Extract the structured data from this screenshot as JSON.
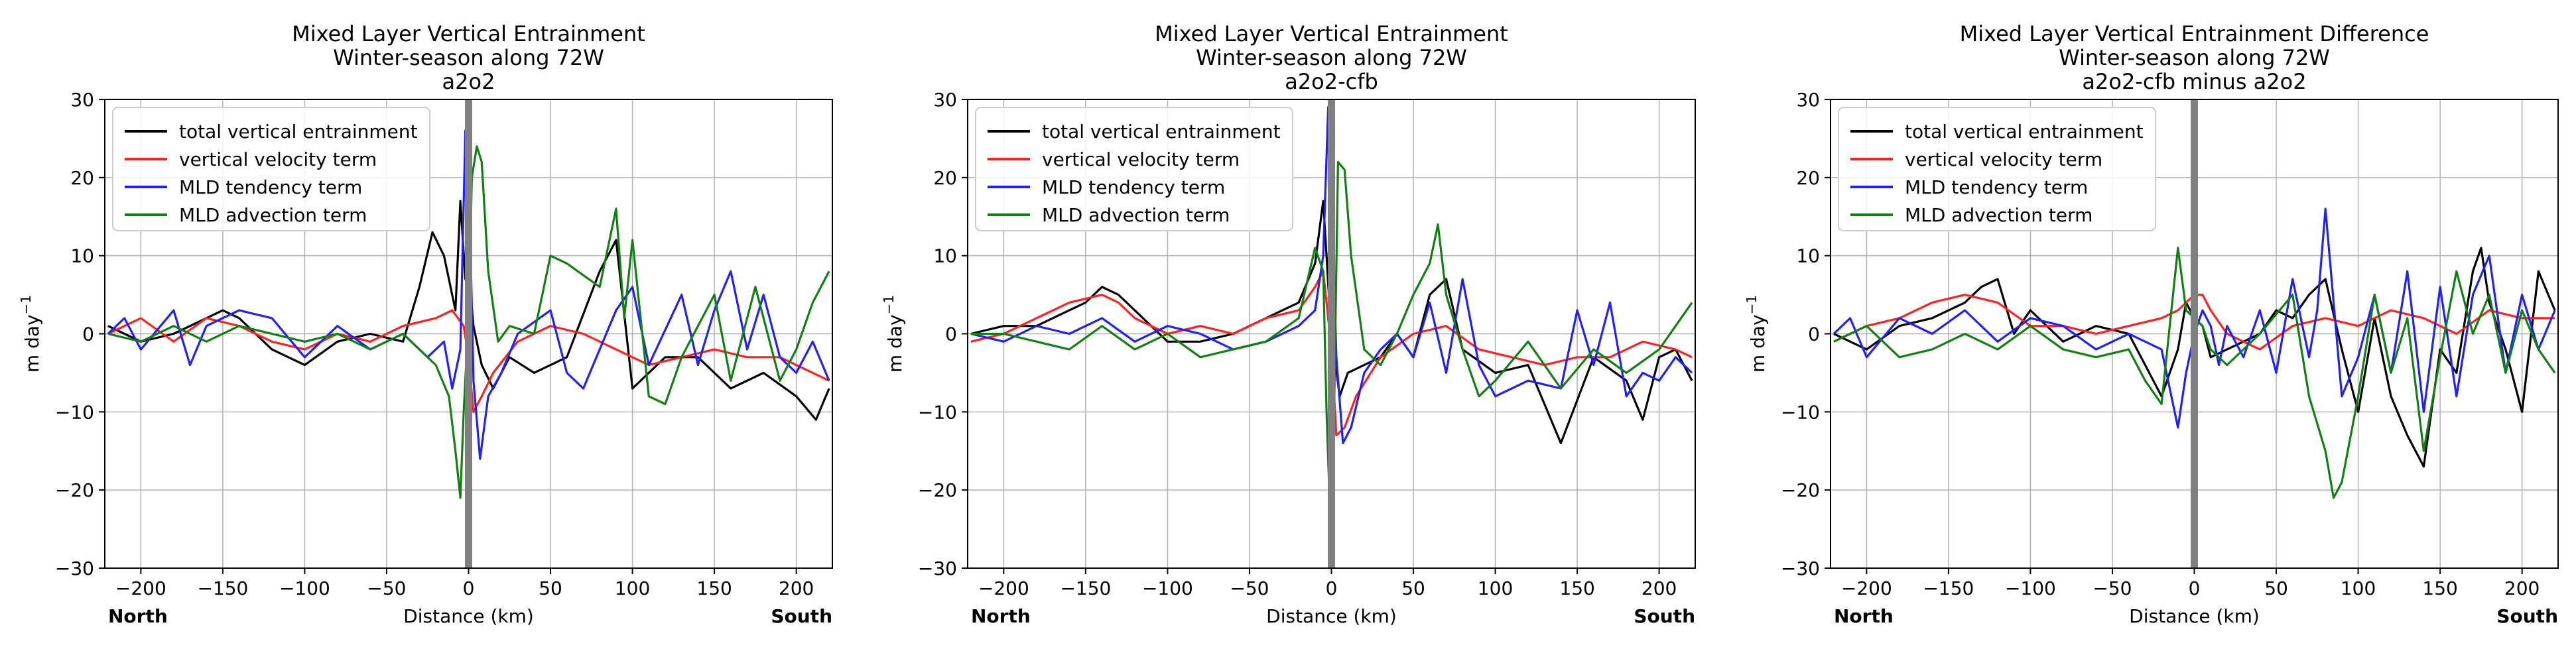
{
  "figure": {
    "ylabel_main": "m day",
    "ylabel_sup": "−1",
    "xlabel": "Distance (km)",
    "north_label": "North",
    "south_label": "South"
  },
  "chart_data": [
    {
      "type": "line",
      "title": [
        "Mixed Layer Vertical Entrainment",
        "Winter-season along 72W",
        "a2o2"
      ],
      "xlabel": "Distance (km)",
      "ylabel": "m day^-1",
      "xlim": [
        -222,
        222
      ],
      "ylim": [
        -30,
        30
      ],
      "xticks": [
        -200,
        -150,
        -100,
        -50,
        0,
        50,
        100,
        150,
        200
      ],
      "yticks": [
        -30,
        -20,
        -10,
        0,
        10,
        20,
        30
      ],
      "xtick_labels": [
        "−200",
        "−150",
        "−100",
        "−50",
        "0",
        "50",
        "100",
        "150",
        "200"
      ],
      "ytick_labels": [
        "−30",
        "−20",
        "−10",
        "0",
        "10",
        "20",
        "30"
      ],
      "grid": true,
      "legend": "top-left",
      "vline_x": 0,
      "series": [
        {
          "name": "total vertical entrainment",
          "color": "#000000",
          "x": [
            -220,
            -200,
            -180,
            -160,
            -150,
            -140,
            -120,
            -100,
            -80,
            -60,
            -40,
            -30,
            -22,
            -15,
            -8,
            -5,
            -2,
            0,
            3,
            8,
            15,
            25,
            40,
            60,
            80,
            90,
            100,
            120,
            140,
            160,
            180,
            200,
            212,
            220
          ],
          "y": [
            1,
            -1,
            0,
            2,
            3,
            2,
            -2,
            -4,
            -1,
            0,
            -1,
            6,
            13,
            10,
            3,
            17,
            7,
            8,
            1,
            -4,
            -7,
            -3,
            -5,
            -3,
            8,
            12,
            -7,
            -3,
            -3,
            -7,
            -5,
            -8,
            -11,
            -7
          ]
        },
        {
          "name": "vertical velocity term",
          "color": "#ff2020",
          "x": [
            -220,
            -200,
            -180,
            -160,
            -140,
            -120,
            -100,
            -80,
            -60,
            -40,
            -20,
            -10,
            -3,
            0,
            3,
            8,
            15,
            30,
            50,
            70,
            90,
            110,
            130,
            150,
            170,
            190,
            210,
            220
          ],
          "y": [
            0,
            2,
            -1,
            2,
            1,
            -1,
            -2,
            0,
            -1,
            1,
            2,
            3,
            1,
            -3,
            -10,
            -8,
            -5,
            -1,
            1,
            0,
            -2,
            -4,
            -3,
            -2,
            -3,
            -3,
            -5,
            -6
          ]
        },
        {
          "name": "MLD tendency term",
          "color": "#2020ff",
          "x": [
            -220,
            -210,
            -200,
            -180,
            -170,
            -160,
            -140,
            -120,
            -100,
            -80,
            -60,
            -40,
            -25,
            -15,
            -10,
            -5,
            -2,
            0,
            3,
            7,
            12,
            20,
            30,
            50,
            60,
            70,
            90,
            100,
            110,
            130,
            140,
            150,
            160,
            170,
            180,
            190,
            200,
            210,
            220
          ],
          "y": [
            0,
            2,
            -2,
            3,
            -4,
            1,
            3,
            2,
            -3,
            1,
            -2,
            0,
            -3,
            -1,
            -7,
            -2,
            26,
            22,
            -6,
            -16,
            -8,
            -5,
            0,
            3,
            -5,
            -7,
            3,
            6,
            -4,
            5,
            -4,
            3,
            8,
            -2,
            5,
            -3,
            -5,
            -1,
            -6
          ]
        },
        {
          "name": "MLD advection term",
          "color": "#108010",
          "x": [
            -220,
            -200,
            -180,
            -160,
            -140,
            -120,
            -100,
            -80,
            -60,
            -40,
            -30,
            -20,
            -12,
            -8,
            -5,
            -3,
            -1,
            0,
            2,
            5,
            8,
            12,
            18,
            25,
            40,
            50,
            60,
            80,
            90,
            95,
            100,
            110,
            120,
            130,
            150,
            160,
            175,
            190,
            200,
            210,
            220
          ],
          "y": [
            0,
            -1,
            1,
            -1,
            1,
            0,
            -1,
            0,
            -2,
            0,
            -2,
            -4,
            -8,
            -15,
            -21,
            -10,
            -2,
            1,
            20,
            24,
            22,
            8,
            -1,
            1,
            0,
            10,
            9,
            6,
            16,
            2,
            12,
            -8,
            -9,
            -3,
            5,
            -6,
            6,
            -6,
            -2,
            4,
            8
          ]
        }
      ]
    },
    {
      "type": "line",
      "title": [
        "Mixed Layer Vertical Entrainment",
        "Winter-season along 72W",
        "a2o2-cfb"
      ],
      "xlabel": "Distance (km)",
      "ylabel": "m day^-1",
      "xlim": [
        -222,
        222
      ],
      "ylim": [
        -30,
        30
      ],
      "xticks": [
        -200,
        -150,
        -100,
        -50,
        0,
        50,
        100,
        150,
        200
      ],
      "yticks": [
        -30,
        -20,
        -10,
        0,
        10,
        20,
        30
      ],
      "xtick_labels": [
        "−200",
        "−150",
        "−100",
        "−50",
        "0",
        "50",
        "100",
        "150",
        "200"
      ],
      "ytick_labels": [
        "−30",
        "−20",
        "−10",
        "0",
        "10",
        "20",
        "30"
      ],
      "grid": true,
      "legend": "top-left",
      "vline_x": 0,
      "series": [
        {
          "name": "total vertical entrainment",
          "color": "#000000",
          "x": [
            -220,
            -200,
            -180,
            -160,
            -150,
            -140,
            -130,
            -120,
            -100,
            -80,
            -60,
            -40,
            -20,
            -10,
            -5,
            -3,
            -1,
            2,
            5,
            10,
            20,
            30,
            40,
            50,
            60,
            70,
            80,
            100,
            120,
            130,
            140,
            160,
            180,
            190,
            200,
            210,
            220
          ],
          "y": [
            0,
            1,
            1,
            3,
            4,
            6,
            5,
            3,
            -1,
            -1,
            0,
            2,
            4,
            9,
            17,
            10,
            3,
            -3,
            -8,
            -5,
            -4,
            -3,
            0,
            -3,
            5,
            7,
            -2,
            -5,
            -4,
            -9,
            -14,
            -3,
            -6,
            -11,
            -3,
            -2,
            -6
          ]
        },
        {
          "name": "vertical velocity term",
          "color": "#ff2020",
          "x": [
            -220,
            -200,
            -180,
            -160,
            -140,
            -130,
            -120,
            -100,
            -80,
            -60,
            -40,
            -20,
            -10,
            -5,
            -3,
            0,
            3,
            8,
            15,
            30,
            50,
            70,
            90,
            110,
            130,
            150,
            170,
            190,
            210,
            220
          ],
          "y": [
            -1,
            0,
            2,
            4,
            5,
            4,
            2,
            0,
            1,
            0,
            2,
            3,
            6,
            8,
            4,
            -2,
            -13,
            -12,
            -8,
            -3,
            0,
            1,
            -2,
            -3,
            -4,
            -3,
            -3,
            -1,
            -2,
            -3
          ]
        },
        {
          "name": "MLD tendency term",
          "color": "#2020ff",
          "x": [
            -220,
            -200,
            -180,
            -160,
            -140,
            -120,
            -100,
            -80,
            -60,
            -40,
            -20,
            -10,
            -5,
            -2,
            0,
            3,
            7,
            12,
            20,
            30,
            40,
            50,
            60,
            70,
            80,
            90,
            100,
            120,
            140,
            150,
            160,
            170,
            180,
            190,
            200,
            210,
            220
          ],
          "y": [
            0,
            -1,
            1,
            0,
            2,
            -1,
            1,
            0,
            -2,
            -1,
            1,
            3,
            10,
            29,
            20,
            -3,
            -14,
            -12,
            -5,
            -2,
            0,
            -3,
            4,
            -5,
            7,
            -4,
            -8,
            -6,
            -7,
            3,
            -4,
            4,
            -8,
            -5,
            -6,
            -3,
            -5
          ]
        },
        {
          "name": "MLD advection term",
          "color": "#108010",
          "x": [
            -220,
            -200,
            -180,
            -160,
            -140,
            -120,
            -100,
            -80,
            -60,
            -40,
            -20,
            -10,
            -5,
            -3,
            -1,
            1,
            4,
            8,
            12,
            20,
            30,
            40,
            50,
            60,
            65,
            70,
            80,
            90,
            100,
            120,
            140,
            160,
            180,
            200,
            210,
            220
          ],
          "y": [
            0,
            0,
            -1,
            -2,
            1,
            -2,
            0,
            -3,
            -2,
            -1,
            2,
            11,
            8,
            -10,
            -22,
            -18,
            22,
            21,
            10,
            -2,
            -4,
            0,
            5,
            9,
            14,
            5,
            -2,
            -8,
            -6,
            -1,
            -7,
            -2,
            -5,
            -2,
            1,
            4
          ]
        }
      ]
    },
    {
      "type": "line",
      "title": [
        "Mixed Layer Vertical Entrainment Difference",
        "Winter-season along 72W",
        "a2o2-cfb minus a2o2"
      ],
      "xlabel": "Distance (km)",
      "ylabel": "m day^-1",
      "xlim": [
        -222,
        222
      ],
      "ylim": [
        -30,
        30
      ],
      "xticks": [
        -200,
        -150,
        -100,
        -50,
        0,
        50,
        100,
        150,
        200
      ],
      "yticks": [
        -30,
        -20,
        -10,
        0,
        10,
        20,
        30
      ],
      "xtick_labels": [
        "−200",
        "−150",
        "−100",
        "−50",
        "0",
        "50",
        "100",
        "150",
        "200"
      ],
      "ytick_labels": [
        "−30",
        "−20",
        "−10",
        "0",
        "10",
        "20",
        "30"
      ],
      "grid": true,
      "legend": "top-left",
      "vline_x": 0,
      "series": [
        {
          "name": "total vertical entrainment",
          "color": "#000000",
          "x": [
            -220,
            -200,
            -180,
            -160,
            -140,
            -130,
            -120,
            -110,
            -100,
            -80,
            -60,
            -40,
            -30,
            -20,
            -10,
            -5,
            0,
            5,
            10,
            20,
            40,
            50,
            60,
            70,
            80,
            90,
            100,
            110,
            120,
            130,
            140,
            150,
            160,
            170,
            175,
            180,
            190,
            200,
            210,
            220
          ],
          "y": [
            0,
            -2,
            1,
            2,
            4,
            6,
            7,
            0,
            3,
            -1,
            1,
            0,
            -4,
            -8,
            -2,
            4,
            2,
            1,
            -3,
            -2,
            0,
            3,
            2,
            5,
            7,
            -2,
            -10,
            2,
            -8,
            -13,
            -17,
            -2,
            -5,
            8,
            11,
            4,
            -2,
            -10,
            8,
            3
          ]
        },
        {
          "name": "vertical velocity term",
          "color": "#ff2020",
          "x": [
            -220,
            -200,
            -180,
            -160,
            -140,
            -120,
            -100,
            -80,
            -60,
            -40,
            -20,
            -10,
            -5,
            0,
            5,
            10,
            20,
            40,
            60,
            80,
            100,
            120,
            140,
            160,
            180,
            200,
            220
          ],
          "y": [
            -1,
            1,
            2,
            4,
            5,
            4,
            1,
            1,
            0,
            1,
            2,
            3,
            4,
            5,
            5,
            3,
            0,
            -2,
            1,
            2,
            1,
            3,
            2,
            0,
            3,
            2,
            2
          ]
        },
        {
          "name": "MLD tendency term",
          "color": "#2020ff",
          "x": [
            -220,
            -210,
            -200,
            -180,
            -160,
            -140,
            -120,
            -100,
            -80,
            -60,
            -40,
            -20,
            -10,
            -5,
            0,
            5,
            10,
            15,
            20,
            30,
            40,
            50,
            60,
            70,
            75,
            80,
            90,
            100,
            110,
            120,
            130,
            140,
            150,
            160,
            170,
            180,
            190,
            200,
            210,
            220
          ],
          "y": [
            0,
            2,
            -3,
            2,
            0,
            3,
            -1,
            2,
            1,
            -2,
            0,
            -2,
            -12,
            -5,
            0,
            3,
            1,
            -4,
            1,
            -3,
            3,
            -5,
            7,
            -3,
            3,
            16,
            -8,
            -3,
            5,
            -5,
            8,
            -10,
            6,
            -8,
            5,
            10,
            -5,
            5,
            -2,
            3
          ]
        },
        {
          "name": "MLD advection term",
          "color": "#108010",
          "x": [
            -220,
            -200,
            -180,
            -160,
            -140,
            -120,
            -100,
            -80,
            -60,
            -40,
            -30,
            -20,
            -10,
            -5,
            0,
            5,
            10,
            20,
            40,
            60,
            70,
            80,
            85,
            90,
            100,
            110,
            120,
            130,
            140,
            150,
            160,
            170,
            180,
            190,
            200,
            210,
            220
          ],
          "y": [
            -1,
            1,
            -3,
            -2,
            0,
            -2,
            1,
            -2,
            -3,
            -2,
            -6,
            -9,
            11,
            3,
            2,
            1,
            -2,
            -4,
            0,
            5,
            -8,
            -15,
            -21,
            -19,
            -8,
            5,
            -5,
            2,
            -15,
            -3,
            8,
            0,
            5,
            -5,
            3,
            -2,
            -5
          ]
        }
      ]
    }
  ]
}
